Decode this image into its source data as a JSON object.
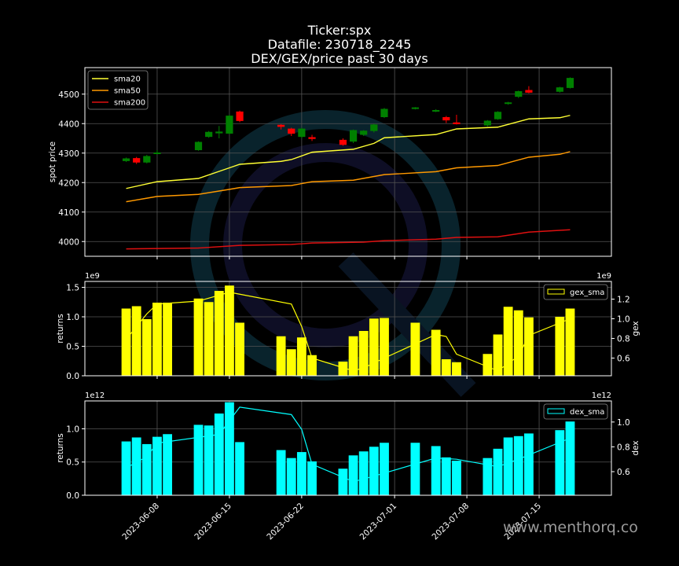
{
  "title": {
    "line1": "Ticker:spx",
    "line2": "Datafile: 230718_2245",
    "line3": "DEX/GEX/price past 30 days"
  },
  "watermark": "www.menthorq.co",
  "colors": {
    "background": "#000000",
    "axes": "#ffffff",
    "grid": "#555555",
    "candle_up": "#008000",
    "candle_down": "#ff0000",
    "sma20": "#ffff33",
    "sma50": "#ff9900",
    "sma200": "#e01010",
    "gex_bar": "#ffff00",
    "gex_sma": "#ffff00",
    "dex_bar": "#00ffff",
    "dex_sma": "#00ffff"
  },
  "chart_data": [
    {
      "type": "candlestick",
      "ylabel": "spot price",
      "yticks": [
        4000,
        4100,
        4200,
        4300,
        4400,
        4500
      ],
      "ylim": [
        3950,
        4590
      ],
      "grid": true,
      "legend_position": "top-left",
      "legend": [
        "sma20",
        "sma50",
        "sma200"
      ],
      "candles": [
        {
          "date": "2023-06-05",
          "open": 4273,
          "close": 4282,
          "high": 4285,
          "low": 4270
        },
        {
          "date": "2023-06-06",
          "open": 4283,
          "close": 4268,
          "high": 4287,
          "low": 4263
        },
        {
          "date": "2023-06-07",
          "open": 4268,
          "close": 4290,
          "high": 4294,
          "low": 4265
        },
        {
          "date": "2023-06-08",
          "open": 4298,
          "close": 4302,
          "high": 4310,
          "low": 4296
        },
        {
          "date": "2023-06-12",
          "open": 4310,
          "close": 4338,
          "high": 4340,
          "low": 4308
        },
        {
          "date": "2023-06-13",
          "open": 4355,
          "close": 4372,
          "high": 4375,
          "low": 4352
        },
        {
          "date": "2023-06-14",
          "open": 4367,
          "close": 4373,
          "high": 4392,
          "low": 4350
        },
        {
          "date": "2023-06-15",
          "open": 4366,
          "close": 4427,
          "high": 4430,
          "low": 4364
        },
        {
          "date": "2023-06-16",
          "open": 4441,
          "close": 4409,
          "high": 4444,
          "low": 4405
        },
        {
          "date": "2023-06-20",
          "open": 4396,
          "close": 4389,
          "high": 4398,
          "low": 4380
        },
        {
          "date": "2023-06-21",
          "open": 4383,
          "close": 4366,
          "high": 4386,
          "low": 4358
        },
        {
          "date": "2023-06-22",
          "open": 4355,
          "close": 4383,
          "high": 4386,
          "low": 4350
        },
        {
          "date": "2023-06-23",
          "open": 4354,
          "close": 4348,
          "high": 4362,
          "low": 4341
        },
        {
          "date": "2023-06-26",
          "open": 4345,
          "close": 4328,
          "high": 4350,
          "low": 4325
        },
        {
          "date": "2023-06-27",
          "open": 4339,
          "close": 4378,
          "high": 4380,
          "low": 4334
        },
        {
          "date": "2023-06-28",
          "open": 4362,
          "close": 4376,
          "high": 4378,
          "low": 4358
        },
        {
          "date": "2023-06-29",
          "open": 4375,
          "close": 4397,
          "high": 4399,
          "low": 4370
        },
        {
          "date": "2023-06-30",
          "open": 4422,
          "close": 4450,
          "high": 4453,
          "low": 4419
        },
        {
          "date": "2023-07-03",
          "open": 4450,
          "close": 4455,
          "high": 4456,
          "low": 4448
        },
        {
          "date": "2023-07-05",
          "open": 4442,
          "close": 4446,
          "high": 4449,
          "low": 4439
        },
        {
          "date": "2023-07-06",
          "open": 4422,
          "close": 4411,
          "high": 4426,
          "low": 4402
        },
        {
          "date": "2023-07-07",
          "open": 4404,
          "close": 4398,
          "high": 4430,
          "low": 4397
        },
        {
          "date": "2023-07-10",
          "open": 4394,
          "close": 4410,
          "high": 4412,
          "low": 4390
        },
        {
          "date": "2023-07-11",
          "open": 4415,
          "close": 4440,
          "high": 4442,
          "low": 4413
        },
        {
          "date": "2023-07-12",
          "open": 4467,
          "close": 4472,
          "high": 4474,
          "low": 4464
        },
        {
          "date": "2023-07-13",
          "open": 4491,
          "close": 4510,
          "high": 4512,
          "low": 4487
        },
        {
          "date": "2023-07-14",
          "open": 4514,
          "close": 4505,
          "high": 4527,
          "low": 4503
        },
        {
          "date": "2023-07-17",
          "open": 4508,
          "close": 4523,
          "high": 4525,
          "low": 4505
        },
        {
          "date": "2023-07-18",
          "open": 4521,
          "close": 4555,
          "high": 4557,
          "low": 4519
        }
      ],
      "series": [
        {
          "name": "sma20",
          "x": [
            "2023-06-05",
            "2023-06-08",
            "2023-06-12",
            "2023-06-15",
            "2023-06-16",
            "2023-06-20",
            "2023-06-21",
            "2023-06-23",
            "2023-06-27",
            "2023-06-29",
            "2023-06-30",
            "2023-07-05",
            "2023-07-07",
            "2023-07-11",
            "2023-07-14",
            "2023-07-17",
            "2023-07-18"
          ],
          "values": [
            4180,
            4203,
            4214,
            4250,
            4262,
            4272,
            4278,
            4303,
            4313,
            4333,
            4352,
            4363,
            4382,
            4388,
            4416,
            4420,
            4428
          ]
        },
        {
          "name": "sma50",
          "x": [
            "2023-06-05",
            "2023-06-07",
            "2023-06-08",
            "2023-06-12",
            "2023-06-15",
            "2023-06-16",
            "2023-06-21",
            "2023-06-23",
            "2023-06-27",
            "2023-06-30",
            "2023-07-05",
            "2023-07-07",
            "2023-07-11",
            "2023-07-14",
            "2023-07-17",
            "2023-07-18"
          ],
          "values": [
            4135,
            4147,
            4153,
            4160,
            4177,
            4183,
            4190,
            4203,
            4208,
            4227,
            4237,
            4250,
            4258,
            4286,
            4296,
            4305
          ]
        },
        {
          "name": "sma200",
          "x": [
            "2023-06-05",
            "2023-06-12",
            "2023-06-16",
            "2023-06-21",
            "2023-06-23",
            "2023-06-28",
            "2023-06-30",
            "2023-07-05",
            "2023-07-07",
            "2023-07-11",
            "2023-07-14",
            "2023-07-18"
          ],
          "values": [
            3975,
            3978,
            3987,
            3990,
            3995,
            3998,
            4003,
            4008,
            4014,
            4016,
            4032,
            4040
          ]
        }
      ]
    },
    {
      "type": "bar",
      "ylabel": "returns",
      "y2label": "gex",
      "yscale_label": "1e9",
      "y2scale_label": "1e9",
      "yticks": [
        0.0,
        0.5,
        1.0,
        1.5
      ],
      "ylim": [
        0,
        1.6
      ],
      "y2ticks": [
        0.6,
        0.8,
        1.0,
        1.2
      ],
      "y2lim": [
        0.42,
        1.38
      ],
      "legend_position": "top-right",
      "legend": [
        "gex_sma"
      ],
      "bars": [
        {
          "date": "2023-06-05",
          "value": 1.14
        },
        {
          "date": "2023-06-06",
          "value": 1.18
        },
        {
          "date": "2023-06-07",
          "value": 0.96
        },
        {
          "date": "2023-06-08",
          "value": 1.24
        },
        {
          "date": "2023-06-09",
          "value": 1.24
        },
        {
          "date": "2023-06-12",
          "value": 1.31
        },
        {
          "date": "2023-06-13",
          "value": 1.25
        },
        {
          "date": "2023-06-14",
          "value": 1.44
        },
        {
          "date": "2023-06-15",
          "value": 1.53
        },
        {
          "date": "2023-06-16",
          "value": 0.9
        },
        {
          "date": "2023-06-20",
          "value": 0.67
        },
        {
          "date": "2023-06-21",
          "value": 0.45
        },
        {
          "date": "2023-06-22",
          "value": 0.65
        },
        {
          "date": "2023-06-23",
          "value": 0.35
        },
        {
          "date": "2023-06-26",
          "value": 0.24
        },
        {
          "date": "2023-06-27",
          "value": 0.67
        },
        {
          "date": "2023-06-28",
          "value": 0.76
        },
        {
          "date": "2023-06-29",
          "value": 0.97
        },
        {
          "date": "2023-06-30",
          "value": 0.98
        },
        {
          "date": "2023-07-03",
          "value": 0.9
        },
        {
          "date": "2023-07-05",
          "value": 0.78
        },
        {
          "date": "2023-07-06",
          "value": 0.28
        },
        {
          "date": "2023-07-07",
          "value": 0.23
        },
        {
          "date": "2023-07-10",
          "value": 0.37
        },
        {
          "date": "2023-07-11",
          "value": 0.7
        },
        {
          "date": "2023-07-12",
          "value": 1.17
        },
        {
          "date": "2023-07-13",
          "value": 1.11
        },
        {
          "date": "2023-07-14",
          "value": 0.99
        },
        {
          "date": "2023-07-17",
          "value": 1.0
        },
        {
          "date": "2023-07-18",
          "value": 1.14
        }
      ],
      "sma": {
        "name": "gex_sma",
        "x": [
          "2023-06-05",
          "2023-06-07",
          "2023-06-08",
          "2023-06-12",
          "2023-06-15",
          "2023-06-16",
          "2023-06-21",
          "2023-06-22",
          "2023-06-23",
          "2023-06-27",
          "2023-06-28",
          "2023-06-30",
          "2023-07-05",
          "2023-07-06",
          "2023-07-07",
          "2023-07-11",
          "2023-07-13",
          "2023-07-14",
          "2023-07-18"
        ],
        "values": [
          0.79,
          1.05,
          1.15,
          1.18,
          1.27,
          1.25,
          1.15,
          0.92,
          0.6,
          0.47,
          0.5,
          0.6,
          0.84,
          0.82,
          0.64,
          0.47,
          0.62,
          0.83,
          1.0
        ]
      }
    },
    {
      "type": "bar",
      "ylabel": "returns",
      "y2label": "dex",
      "yscale_label": "1e12",
      "y2scale_label": "1e12",
      "yticks": [
        0.0,
        0.5,
        1.0
      ],
      "ylim": [
        0,
        1.42
      ],
      "y2ticks": [
        0.6,
        0.8,
        1.0
      ],
      "y2lim": [
        0.41,
        1.17
      ],
      "legend_position": "top-right",
      "legend": [
        "dex_sma"
      ],
      "bars": [
        {
          "date": "2023-06-05",
          "value": 0.81
        },
        {
          "date": "2023-06-06",
          "value": 0.87
        },
        {
          "date": "2023-06-07",
          "value": 0.77
        },
        {
          "date": "2023-06-08",
          "value": 0.88
        },
        {
          "date": "2023-06-09",
          "value": 0.92
        },
        {
          "date": "2023-06-12",
          "value": 1.06
        },
        {
          "date": "2023-06-13",
          "value": 1.05
        },
        {
          "date": "2023-06-14",
          "value": 1.23
        },
        {
          "date": "2023-06-15",
          "value": 1.4
        },
        {
          "date": "2023-06-16",
          "value": 0.8
        },
        {
          "date": "2023-06-20",
          "value": 0.68
        },
        {
          "date": "2023-06-21",
          "value": 0.56
        },
        {
          "date": "2023-06-22",
          "value": 0.65
        },
        {
          "date": "2023-06-23",
          "value": 0.51
        },
        {
          "date": "2023-06-26",
          "value": 0.4
        },
        {
          "date": "2023-06-27",
          "value": 0.6
        },
        {
          "date": "2023-06-28",
          "value": 0.66
        },
        {
          "date": "2023-06-29",
          "value": 0.73
        },
        {
          "date": "2023-06-30",
          "value": 0.79
        },
        {
          "date": "2023-07-03",
          "value": 0.79
        },
        {
          "date": "2023-07-05",
          "value": 0.74
        },
        {
          "date": "2023-07-06",
          "value": 0.57
        },
        {
          "date": "2023-07-07",
          "value": 0.52
        },
        {
          "date": "2023-07-10",
          "value": 0.56
        },
        {
          "date": "2023-07-11",
          "value": 0.7
        },
        {
          "date": "2023-07-12",
          "value": 0.87
        },
        {
          "date": "2023-07-13",
          "value": 0.89
        },
        {
          "date": "2023-07-14",
          "value": 0.93
        },
        {
          "date": "2023-07-17",
          "value": 0.98
        },
        {
          "date": "2023-07-18",
          "value": 1.11
        }
      ],
      "sma": {
        "name": "dex_sma",
        "x": [
          "2023-06-05",
          "2023-06-07",
          "2023-06-08",
          "2023-06-14",
          "2023-06-16",
          "2023-06-21",
          "2023-06-22",
          "2023-06-23",
          "2023-06-27",
          "2023-06-28",
          "2023-07-05",
          "2023-07-07",
          "2023-07-11",
          "2023-07-13",
          "2023-07-18"
        ],
        "values": [
          0.63,
          0.72,
          0.83,
          0.9,
          1.12,
          1.06,
          0.94,
          0.66,
          0.52,
          0.54,
          0.71,
          0.7,
          0.64,
          0.7,
          0.87
        ]
      }
    }
  ],
  "x_axis": {
    "tick_labels": [
      "2023-06-08",
      "2023-06-15",
      "2023-06-22",
      "2023-07-01",
      "2023-07-08",
      "2023-07-15"
    ]
  }
}
